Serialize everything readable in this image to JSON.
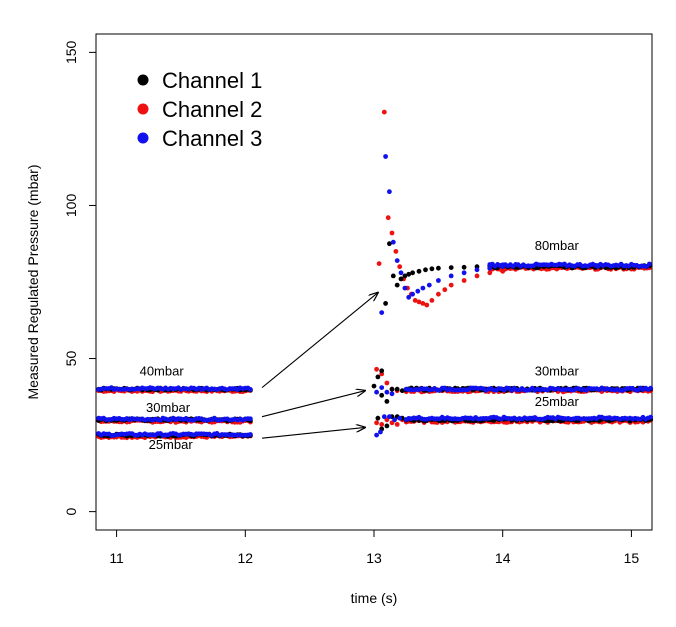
{
  "chart_data": {
    "type": "scatter",
    "xlabel": "time (s)",
    "ylabel": "Measured Regulated Pressure (mbar)",
    "xlim": [
      10.84,
      15.16
    ],
    "ylim": [
      -6,
      156
    ],
    "x_ticks": [
      11,
      12,
      13,
      14,
      15
    ],
    "y_ticks": [
      0,
      50,
      100,
      150
    ],
    "x_tick_labels": [
      "11",
      "12",
      "13",
      "14",
      "15"
    ],
    "y_tick_labels": [
      "0",
      "50",
      "100",
      "150"
    ],
    "grid": false,
    "legend": {
      "placement": "top-left",
      "entries": [
        {
          "name": "Channel 1",
          "color": "#000000"
        },
        {
          "name": "Channel 2",
          "color": "#ee1111"
        },
        {
          "name": "Channel 3",
          "color": "#1111ee"
        }
      ]
    },
    "annotations": [
      {
        "text": "40mbar",
        "x": 11.35,
        "y": 44.5
      },
      {
        "text": "30mbar",
        "x": 11.4,
        "y": 32.5
      },
      {
        "text": "25mbar",
        "x": 11.42,
        "y": 20.5
      },
      {
        "text": "80mbar",
        "x": 14.42,
        "y": 85.5
      },
      {
        "text": "30mbar",
        "x": 14.42,
        "y": 44.5
      },
      {
        "text": "25mbar",
        "x": 14.42,
        "y": 34.5
      }
    ],
    "arrows": [
      {
        "from": [
          12.13,
          40.5
        ],
        "to": [
          13.03,
          71.5
        ]
      },
      {
        "from": [
          12.13,
          31
        ],
        "to": [
          12.93,
          39.5
        ]
      },
      {
        "from": [
          12.13,
          24
        ],
        "to": [
          12.93,
          27.5
        ]
      }
    ],
    "segments_before_step": {
      "x_range": [
        10.86,
        12.04
      ],
      "levels": [
        40,
        30,
        25
      ]
    },
    "series": [
      {
        "name": "Channel 1",
        "transient_points": [
          [
            13.0,
            41
          ],
          [
            13.03,
            44
          ],
          [
            13.06,
            46
          ],
          [
            13.09,
            68
          ],
          [
            13.12,
            87.5
          ],
          [
            13.15,
            77
          ],
          [
            13.18,
            74
          ],
          [
            13.21,
            76
          ],
          [
            13.24,
            77
          ],
          [
            13.27,
            77.5
          ],
          [
            13.3,
            78
          ],
          [
            13.35,
            78.5
          ],
          [
            13.4,
            79
          ],
          [
            13.45,
            79.3
          ],
          [
            13.5,
            79.5
          ],
          [
            13.6,
            79.7
          ],
          [
            13.7,
            79.8
          ],
          [
            13.8,
            80
          ],
          [
            13.9,
            80
          ],
          [
            13.06,
            38
          ],
          [
            13.1,
            36
          ],
          [
            13.14,
            40
          ],
          [
            13.18,
            40
          ],
          [
            13.22,
            39.5
          ],
          [
            13.03,
            30.5
          ],
          [
            13.06,
            27
          ],
          [
            13.1,
            28
          ],
          [
            13.14,
            31
          ],
          [
            13.18,
            31
          ],
          [
            13.22,
            30.5
          ]
        ],
        "steady_levels": [
          80,
          40,
          30
        ]
      },
      {
        "name": "Channel 2",
        "transient_points": [
          [
            13.04,
            81
          ],
          [
            13.08,
            130.5
          ],
          [
            13.11,
            96
          ],
          [
            13.14,
            91
          ],
          [
            13.17,
            85
          ],
          [
            13.2,
            80
          ],
          [
            13.23,
            76
          ],
          [
            13.26,
            73
          ],
          [
            13.29,
            71
          ],
          [
            13.32,
            69
          ],
          [
            13.35,
            68.5
          ],
          [
            13.38,
            68
          ],
          [
            13.41,
            67.5
          ],
          [
            13.45,
            69
          ],
          [
            13.5,
            71
          ],
          [
            13.55,
            72.5
          ],
          [
            13.6,
            74
          ],
          [
            13.7,
            75.5
          ],
          [
            13.8,
            77
          ],
          [
            13.9,
            78
          ],
          [
            14.0,
            78.5
          ],
          [
            13.02,
            46.5
          ],
          [
            13.06,
            45
          ],
          [
            13.1,
            42
          ],
          [
            13.14,
            40
          ],
          [
            13.18,
            39.5
          ],
          [
            13.02,
            29
          ],
          [
            13.06,
            28.5
          ],
          [
            13.1,
            30
          ],
          [
            13.14,
            29
          ],
          [
            13.18,
            28.5
          ],
          [
            13.22,
            30
          ]
        ],
        "steady_levels": [
          79.5,
          39.5,
          29.5
        ]
      },
      {
        "name": "Channel 3",
        "transient_points": [
          [
            13.06,
            65
          ],
          [
            13.09,
            116
          ],
          [
            13.12,
            104.5
          ],
          [
            13.15,
            88
          ],
          [
            13.18,
            82
          ],
          [
            13.21,
            78
          ],
          [
            13.24,
            73
          ],
          [
            13.27,
            70
          ],
          [
            13.3,
            71
          ],
          [
            13.34,
            72
          ],
          [
            13.38,
            73
          ],
          [
            13.43,
            74
          ],
          [
            13.5,
            75.5
          ],
          [
            13.6,
            77
          ],
          [
            13.7,
            78
          ],
          [
            13.8,
            79
          ],
          [
            13.9,
            79.5
          ],
          [
            14.0,
            80
          ],
          [
            13.02,
            39
          ],
          [
            13.06,
            40.5
          ],
          [
            13.1,
            39
          ],
          [
            13.14,
            38.5
          ],
          [
            13.02,
            25
          ],
          [
            13.05,
            26
          ],
          [
            13.08,
            31
          ],
          [
            13.12,
            31
          ],
          [
            13.16,
            30
          ],
          [
            13.2,
            30.5
          ]
        ],
        "steady_levels": [
          80.5,
          40,
          30.5
        ]
      }
    ]
  }
}
